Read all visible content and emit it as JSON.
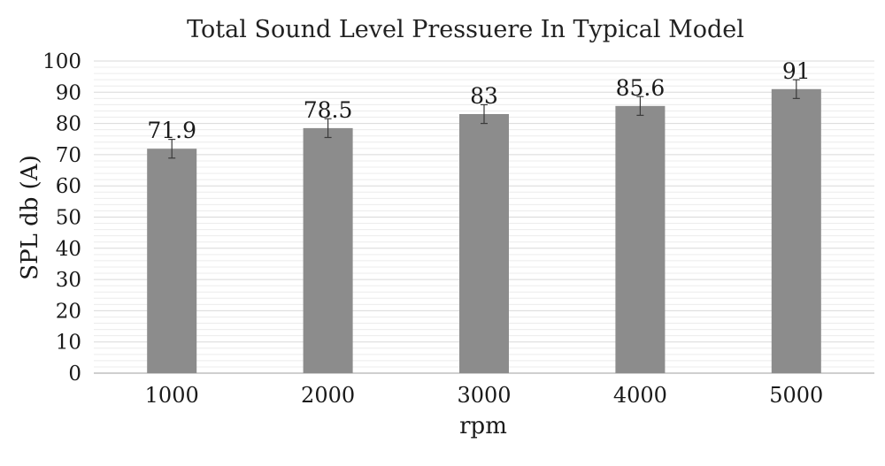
{
  "chart_data": {
    "type": "bar",
    "title": "Total Sound Level Pressuere In Typical Model",
    "xlabel": "rpm",
    "ylabel": "SPL db (A)",
    "categories": [
      "1000",
      "2000",
      "3000",
      "4000",
      "5000"
    ],
    "values": [
      71.9,
      78.5,
      83,
      85.6,
      91
    ],
    "data_labels": [
      "71.9",
      "78.5",
      "83",
      "85.6",
      "91"
    ],
    "error_bars": [
      3,
      3,
      3,
      3,
      3
    ],
    "ylim": [
      0,
      100
    ],
    "yticks": [
      "0",
      "10",
      "20",
      "30",
      "40",
      "50",
      "60",
      "70",
      "80",
      "90",
      "100"
    ],
    "grid": true,
    "minor_grid": true,
    "legend": "none",
    "colors": {
      "bar": "#8c8c8c",
      "grid": "#d9d9d9",
      "minor_grid": "#ececec",
      "error_bar": "#3a3a3a"
    }
  }
}
